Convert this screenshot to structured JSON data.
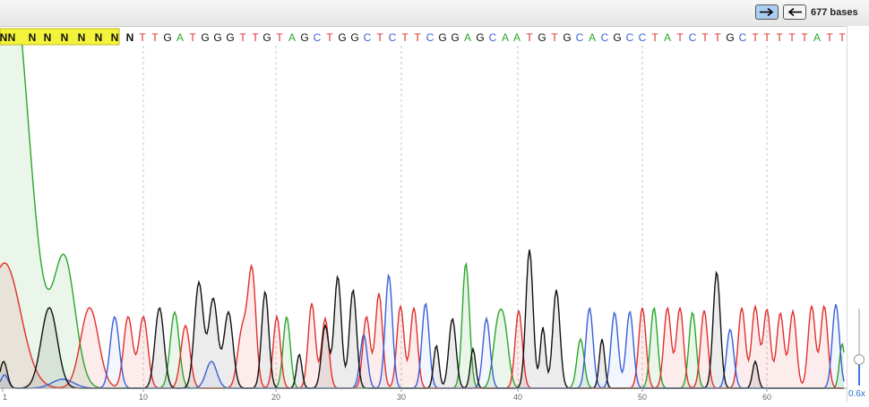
{
  "toolbar": {
    "forward_icon": "arrow-right-icon",
    "reverse_icon": "arrow-left-icon",
    "bases_label": "677 bases"
  },
  "zoom": {
    "label": "0.6x",
    "level": 0.25
  },
  "colors": {
    "A": "#2ca52c",
    "C": "#3b5fd8",
    "G": "#111111",
    "T": "#e0302c",
    "N": "#111111",
    "low_quality_highlight": "#f3f33c"
  },
  "sequence": {
    "bases": "NNNNNNNNNNTTGATGGGTTGTAGCTGGCTCTTCGGAGCAATGTGCACGCCTATCTTGCTTTTTATTCA",
    "low_quality_count": 9
  },
  "ruler": {
    "ticks": [
      "1",
      "10",
      "20",
      "30",
      "40",
      "50",
      "60"
    ]
  }
}
